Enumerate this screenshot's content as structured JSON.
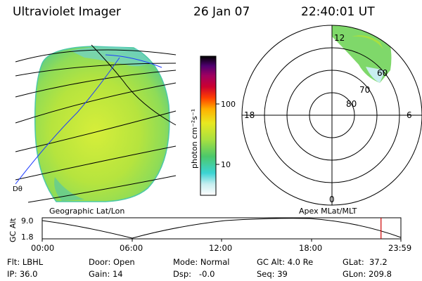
{
  "header": {
    "instrument": "Ultraviolet Imager",
    "date": "26 Jan 07",
    "time": "22:40:01 UT"
  },
  "colorbar": {
    "unit_label": "photon cm⁻²s⁻¹",
    "ticks": [
      "100",
      "10"
    ]
  },
  "polar": {
    "hour_labels": {
      "top": "12",
      "left": "18",
      "right": "6",
      "bottom": "0"
    },
    "lat_labels": [
      "80",
      "70",
      "60"
    ]
  },
  "map": {
    "left_label": "Geographic Lat/Lon",
    "right_label": "Apex MLat/MLT",
    "edge_label": "Dθ"
  },
  "timeline": {
    "ylabel": "GC Alt",
    "y_ticks": [
      "9.0",
      "1.8"
    ],
    "x_ticks": [
      "00:00",
      "06:00",
      "12:00",
      "18:00",
      "23:59"
    ],
    "current_marker_hours": 22.67
  },
  "info": {
    "row1": {
      "filter": "Flt: LBHL",
      "door": "Door: Open",
      "mode": "Mode: Normal",
      "gc_alt": "GC Alt: 4.0 Re",
      "glat": "GLat:  37.2"
    },
    "row2": {
      "ip": "IP: 36.0",
      "gain": "Gain: 14",
      "dsp": "Dsp:   -0.0",
      "seq": "Seq: 39",
      "glon": "GLon: 209.8"
    }
  },
  "colors": {
    "disk_fill": "#b8e63c",
    "marker": "#cc0000"
  }
}
